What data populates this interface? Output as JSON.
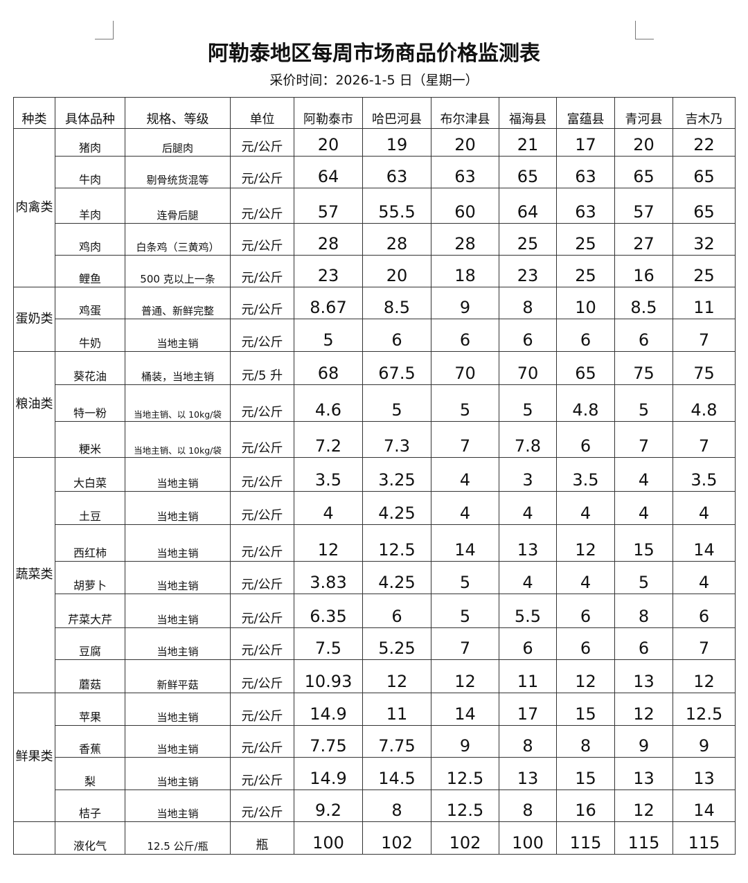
{
  "title": "阿勒泰地区每周市场商品价格监测表",
  "subtitle": "采价时间：2026-1-5 日（星期一）",
  "headers": [
    "种类",
    "具体品种",
    "规格、等级",
    "单位",
    "阿勒泰市",
    "哈巴河县",
    "布尔津县",
    "福海县",
    "富蕴县",
    "青河县",
    "吉木乃"
  ],
  "categories": [
    {
      "label": "肉禽类",
      "rows": 5
    },
    {
      "label": "蛋奶类",
      "rows": 2
    },
    {
      "label": "粮油类",
      "rows": 3
    },
    {
      "label": "蔬菜类",
      "rows": 7
    },
    {
      "label": "鲜果类",
      "rows": 4
    },
    {
      "label": "",
      "rows": 1
    }
  ],
  "rows": [
    {
      "name": "猪肉",
      "spec": "后腿肉",
      "unit": "元/公斤",
      "prices": [
        "20",
        "19",
        "20",
        "21",
        "17",
        "20",
        "22"
      ]
    },
    {
      "name": "牛肉",
      "spec": "剔骨统货混等",
      "unit": "元/公斤",
      "prices": [
        "64",
        "63",
        "63",
        "65",
        "63",
        "65",
        "65"
      ]
    },
    {
      "name": "羊肉",
      "spec": "连骨后腿",
      "unit": "元/公斤",
      "prices": [
        "57",
        "55.5",
        "60",
        "64",
        "63",
        "57",
        "65"
      ]
    },
    {
      "name": "鸡肉",
      "spec": "白条鸡（三黄鸡）",
      "unit": "元/公斤",
      "prices": [
        "28",
        "28",
        "28",
        "25",
        "25",
        "27",
        "32"
      ]
    },
    {
      "name": "鲤鱼",
      "spec": "500 克以上一条",
      "unit": "元/公斤",
      "prices": [
        "23",
        "20",
        "18",
        "23",
        "25",
        "16",
        "25"
      ]
    },
    {
      "name": "鸡蛋",
      "spec": "普通、新鲜完整",
      "unit": "元/公斤",
      "prices": [
        "8.67",
        "8.5",
        "9",
        "8",
        "10",
        "8.5",
        "11"
      ]
    },
    {
      "name": "牛奶",
      "spec": "当地主销",
      "unit": "元/公斤",
      "prices": [
        "5",
        "6",
        "6",
        "6",
        "6",
        "6",
        "7"
      ]
    },
    {
      "name": "葵花油",
      "spec": "桶装，当地主销",
      "unit": "元/5 升",
      "prices": [
        "68",
        "67.5",
        "70",
        "70",
        "65",
        "75",
        "75"
      ]
    },
    {
      "name": "特一粉",
      "spec": "当地主销、以 10kg/袋",
      "unit": "元/公斤",
      "prices": [
        "4.6",
        "5",
        "5",
        "5",
        "4.8",
        "5",
        "4.8"
      ]
    },
    {
      "name": "粳米",
      "spec": "当地主销、以 10kg/袋",
      "unit": "元/公斤",
      "prices": [
        "7.2",
        "7.3",
        "7",
        "7.8",
        "6",
        "7",
        "7"
      ]
    },
    {
      "name": "大白菜",
      "spec": "当地主销",
      "unit": "元/公斤",
      "prices": [
        "3.5",
        "3.25",
        "4",
        "3",
        "3.5",
        "4",
        "3.5"
      ]
    },
    {
      "name": "土豆",
      "spec": "当地主销",
      "unit": "元/公斤",
      "prices": [
        "4",
        "4.25",
        "4",
        "4",
        "4",
        "4",
        "4"
      ]
    },
    {
      "name": "西红柿",
      "spec": "当地主销",
      "unit": "元/公斤",
      "prices": [
        "12",
        "12.5",
        "14",
        "13",
        "12",
        "15",
        "14"
      ]
    },
    {
      "name": "胡萝卜",
      "spec": "当地主销",
      "unit": "元/公斤",
      "prices": [
        "3.83",
        "4.25",
        "5",
        "4",
        "4",
        "5",
        "4"
      ]
    },
    {
      "name": "芹菜大芹",
      "spec": "当地主销",
      "unit": "元/公斤",
      "prices": [
        "6.35",
        "6",
        "5",
        "5.5",
        "6",
        "8",
        "6"
      ]
    },
    {
      "name": "豆腐",
      "spec": "当地主销",
      "unit": "元/公斤",
      "prices": [
        "7.5",
        "5.25",
        "7",
        "6",
        "6",
        "6",
        "7"
      ]
    },
    {
      "name": "蘑菇",
      "spec": "新鲜平菇",
      "unit": "元/公斤",
      "prices": [
        "10.93",
        "12",
        "12",
        "11",
        "12",
        "13",
        "12"
      ]
    },
    {
      "name": "苹果",
      "spec": "当地主销",
      "unit": "元/公斤",
      "prices": [
        "14.9",
        "11",
        "14",
        "17",
        "15",
        "12",
        "12.5"
      ]
    },
    {
      "name": "香蕉",
      "spec": "当地主销",
      "unit": "元/公斤",
      "prices": [
        "7.75",
        "7.75",
        "9",
        "8",
        "8",
        "9",
        "9"
      ]
    },
    {
      "name": "梨",
      "spec": "当地主销",
      "unit": "元/公斤",
      "prices": [
        "14.9",
        "14.5",
        "12.5",
        "13",
        "15",
        "13",
        "13"
      ]
    },
    {
      "name": "桔子",
      "spec": "当地主销",
      "unit": "元/公斤",
      "prices": [
        "9.2",
        "8",
        "12.5",
        "8",
        "16",
        "12",
        "14"
      ]
    },
    {
      "name": "液化气",
      "spec": "12.5 公斤/瓶",
      "unit": "瓶",
      "prices": [
        "100",
        "102",
        "102",
        "100",
        "115",
        "115",
        "115"
      ]
    }
  ]
}
